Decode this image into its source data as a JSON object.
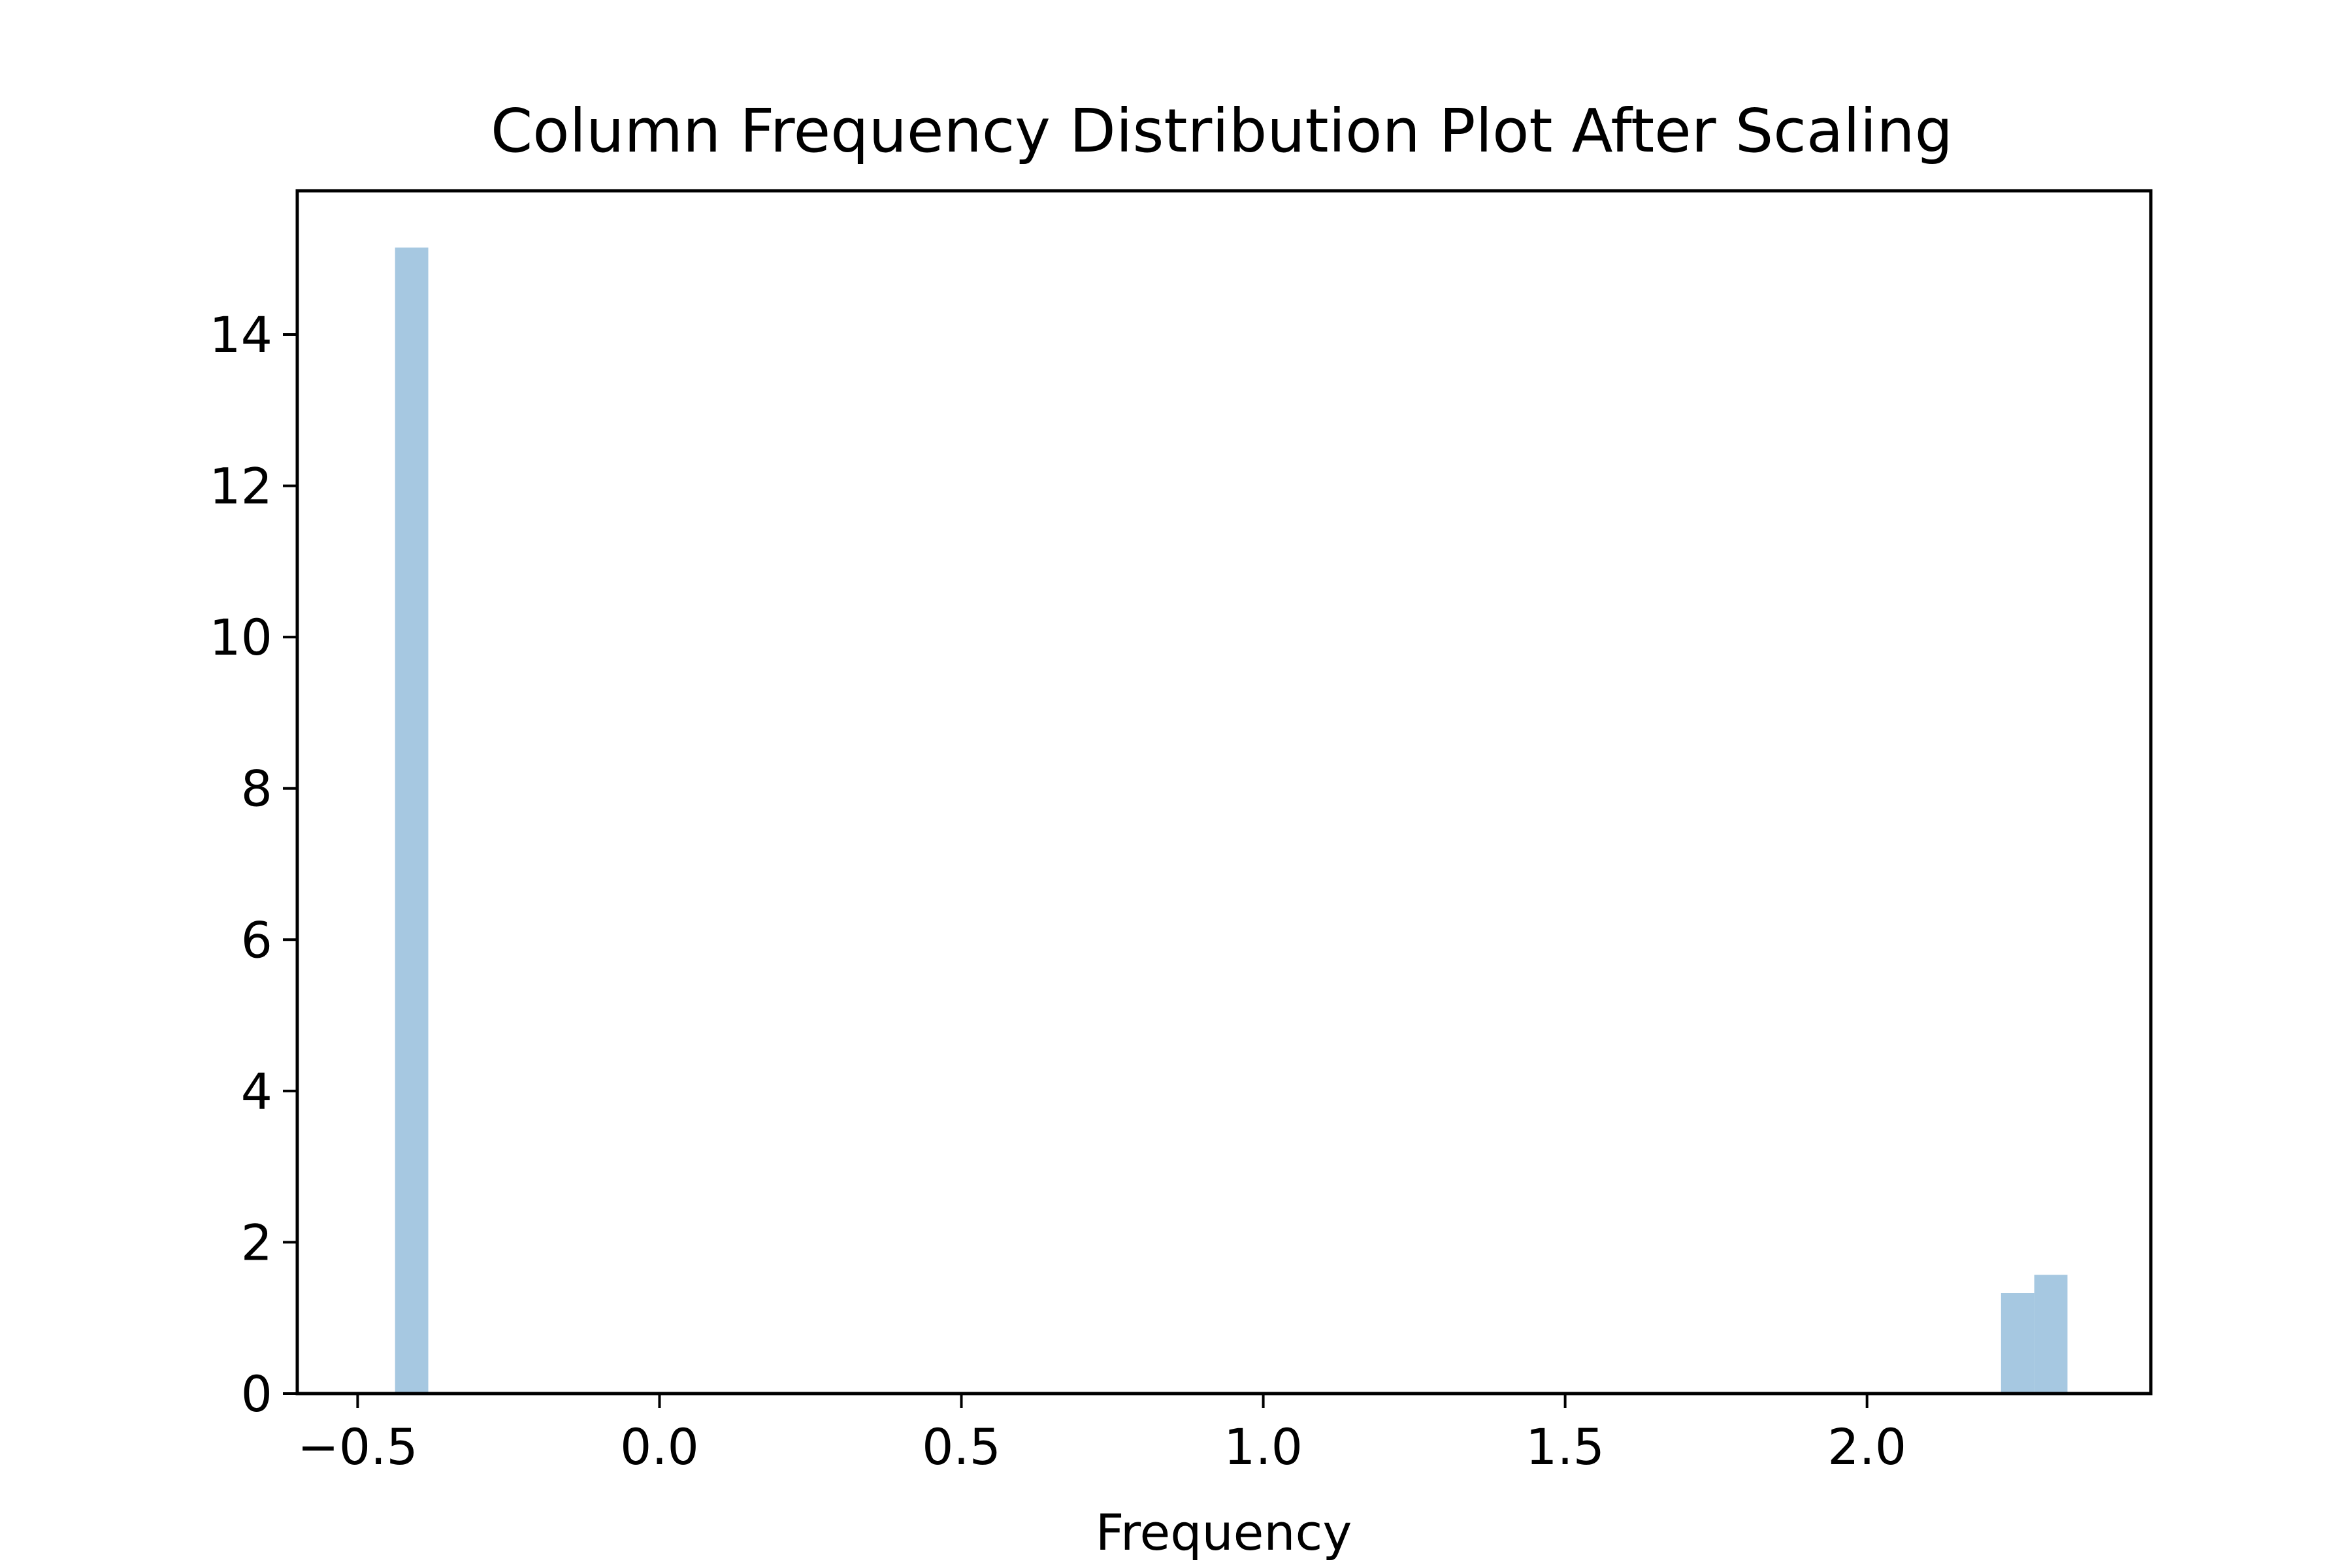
{
  "chart_data": {
    "type": "bar",
    "title": "Column Frequency Distribution Plot After Scaling",
    "xlabel": "Frequency",
    "ylabel": "",
    "xlim": [
      -0.6,
      2.47
    ],
    "ylim": [
      0,
      15.9
    ],
    "grid": false,
    "bar_color": "#a6c8e1",
    "xticks": [
      {
        "value": -0.5,
        "label": "−0.5"
      },
      {
        "value": 0.0,
        "label": "0.0"
      },
      {
        "value": 0.5,
        "label": "0.5"
      },
      {
        "value": 1.0,
        "label": "1.0"
      },
      {
        "value": 1.5,
        "label": "1.5"
      },
      {
        "value": 2.0,
        "label": "2.0"
      }
    ],
    "yticks": [
      {
        "value": 0,
        "label": "0"
      },
      {
        "value": 2,
        "label": "2"
      },
      {
        "value": 4,
        "label": "4"
      },
      {
        "value": 6,
        "label": "6"
      },
      {
        "value": 8,
        "label": "8"
      },
      {
        "value": 10,
        "label": "10"
      },
      {
        "value": 12,
        "label": "12"
      },
      {
        "value": 14,
        "label": "14"
      }
    ],
    "bins": [
      {
        "x0": -0.438,
        "x1": -0.383,
        "value": 15.15
      },
      {
        "x0": 2.222,
        "x1": 2.277,
        "value": 1.33
      },
      {
        "x0": 2.277,
        "x1": 2.332,
        "value": 1.57
      }
    ]
  }
}
